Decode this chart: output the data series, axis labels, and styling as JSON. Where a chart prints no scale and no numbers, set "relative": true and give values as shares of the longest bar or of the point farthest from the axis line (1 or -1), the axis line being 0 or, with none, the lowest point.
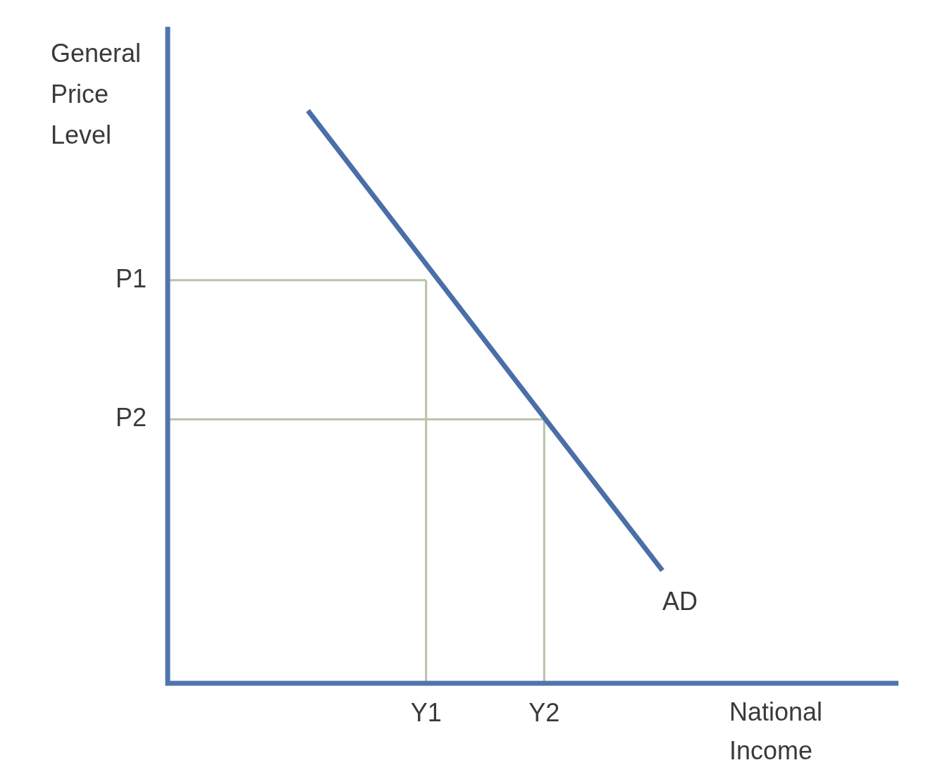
{
  "chart_data": {
    "type": "line",
    "relative": true,
    "xlabel": "National Income",
    "ylabel": "General Price Level",
    "categories": [
      null,
      "Y1",
      "Y2",
      null
    ],
    "grid": false,
    "marker": "none",
    "line_style": "solid",
    "series": [
      {
        "color": "#4a6fa8",
        "values": [
          1,
          0.732,
          0.464,
          0.197
        ]
      }
    ],
    "ref_lines": [
      {
        "axis": "y",
        "value": 0.704,
        "label": "P1",
        "color": "#b9c2a6"
      },
      {
        "axis": "y",
        "value": 0.461,
        "label": "P2",
        "color": "#b9c2a6"
      },
      {
        "axis": "x",
        "value": "Y1",
        "color": "#b9c2a6"
      },
      {
        "axis": "x",
        "value": "Y2",
        "color": "#b9c2a6"
      }
    ],
    "annotations": [
      "AD"
    ]
  }
}
